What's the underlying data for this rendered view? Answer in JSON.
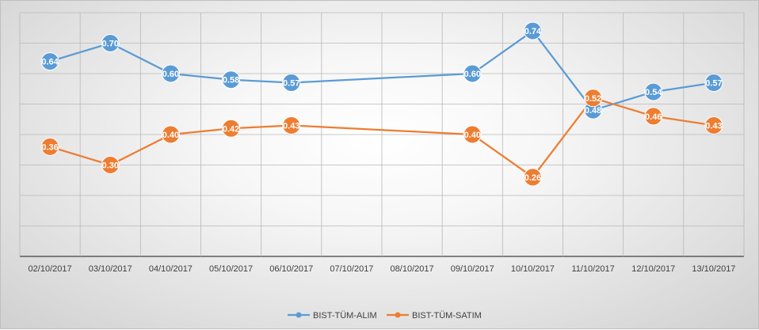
{
  "chart_data": {
    "type": "line",
    "title": "",
    "xlabel": "",
    "ylabel": "",
    "ylim": [
      0.0,
      0.8
    ],
    "grid": true,
    "legend_position": "bottom",
    "categories": [
      "02/10/2017",
      "03/10/2017",
      "04/10/2017",
      "05/10/2017",
      "06/10/2017",
      "07/10/2017",
      "08/10/2017",
      "09/10/2017",
      "10/10/2017",
      "11/10/2017",
      "12/10/2017",
      "13/10/2017"
    ],
    "series": [
      {
        "name": "BIST-TÜM-ALIM",
        "color": "#5b9bd5",
        "values": [
          0.64,
          0.7,
          0.6,
          0.58,
          0.57,
          null,
          null,
          0.6,
          0.74,
          0.48,
          0.54,
          0.57
        ],
        "labels": [
          "0.64",
          "0.70",
          "0.60",
          "0.58",
          "0.57",
          null,
          null,
          "0.60",
          "0.74",
          "0.48",
          "0.54",
          "0.57"
        ]
      },
      {
        "name": "BIST-TÜM-SATIM",
        "color": "#ed7d31",
        "values": [
          0.36,
          0.3,
          0.4,
          0.42,
          0.43,
          null,
          null,
          0.4,
          0.26,
          0.52,
          0.46,
          0.43
        ],
        "labels": [
          "0.36",
          "0.30",
          "0.40",
          "0.42",
          "0.43",
          null,
          null,
          "0.40",
          "0.26",
          "0.52",
          "0.46",
          "0.43"
        ]
      }
    ]
  }
}
